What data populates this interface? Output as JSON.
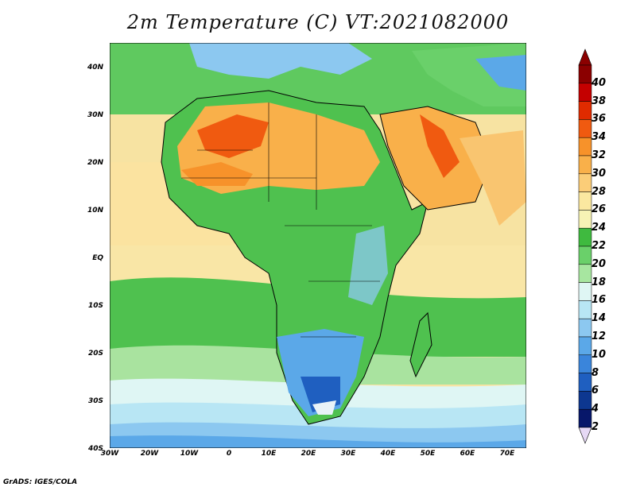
{
  "title": "2m Temperature (C) VT:2021082000",
  "footer": "GrADS: IGES/COLA",
  "map": {
    "lon_range": [
      -30,
      75
    ],
    "lat_range": [
      -40,
      45
    ],
    "x_ticks": [
      "30W",
      "20W",
      "10W",
      "0",
      "10E",
      "20E",
      "30E",
      "40E",
      "50E",
      "60E",
      "70E"
    ],
    "y_ticks": [
      "40N",
      "30N",
      "20N",
      "10N",
      "EQ",
      "10S",
      "20S",
      "30S",
      "40S"
    ]
  },
  "colorbar": {
    "labels": [
      "40",
      "38",
      "36",
      "34",
      "32",
      "30",
      "28",
      "26",
      "24",
      "22",
      "20",
      "18",
      "16",
      "14",
      "12",
      "10",
      "8",
      "6",
      "4",
      "2"
    ],
    "colors": [
      "#8b0000",
      "#c40000",
      "#e02b00",
      "#f05a10",
      "#f7922a",
      "#f9b04a",
      "#fbcd78",
      "#fbe8a0",
      "#f7f3b5",
      "#3fba3f",
      "#6ad06a",
      "#a7e6a0",
      "#dff6f4",
      "#b8e6f4",
      "#8cc8f0",
      "#5ba8e8",
      "#3a85db",
      "#1f5fc0",
      "#0d3790",
      "#07176a"
    ],
    "top_arrow_color": "#8b0000",
    "bottom_arrow_color": "#e6d9f5"
  }
}
